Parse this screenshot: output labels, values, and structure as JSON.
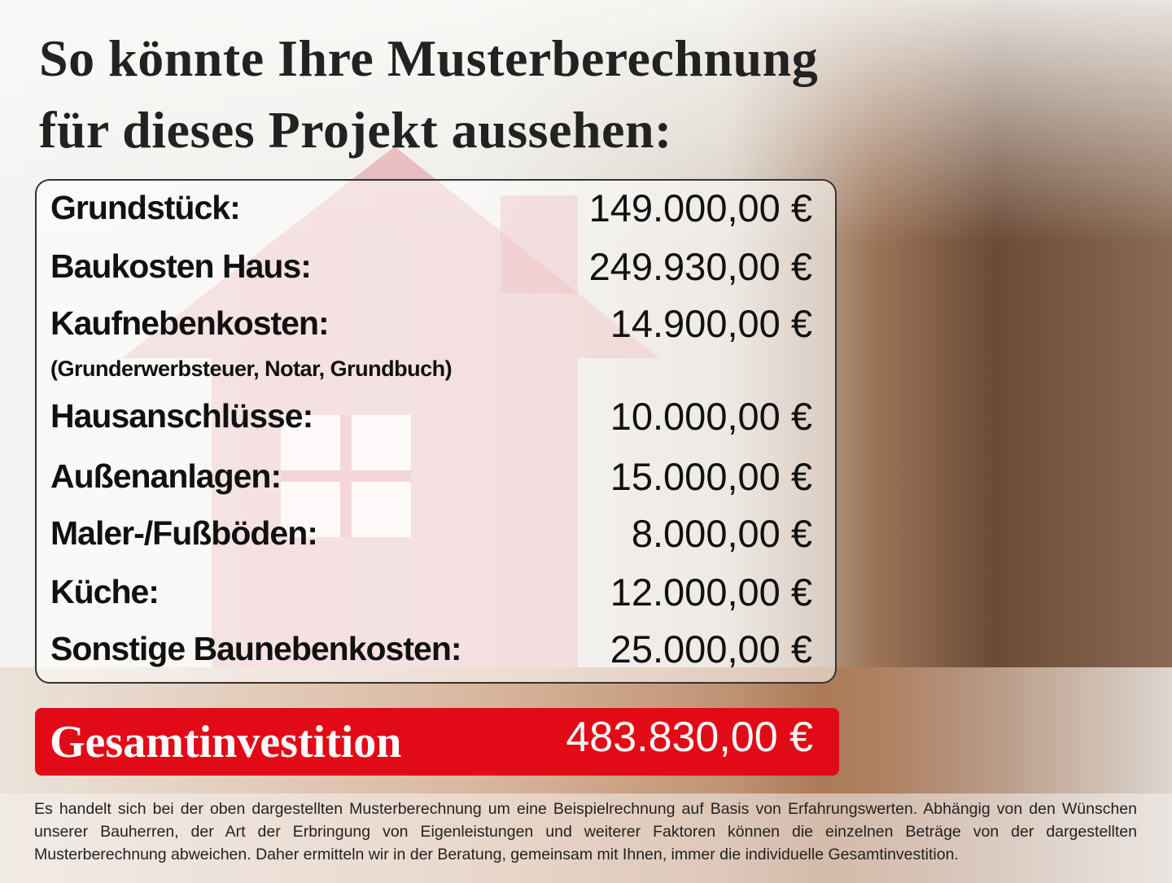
{
  "title": {
    "line1": "So könnte Ihre Musterberechnung",
    "line2": "für dieses Projekt aussehen:"
  },
  "items": [
    {
      "label": "Grundstück:",
      "value": "149.000,00 €"
    },
    {
      "label": "Baukosten Haus:",
      "value": "249.930,00 €"
    },
    {
      "label": "Kaufnebenkosten:",
      "value": "14.900,00 €",
      "note": "(Grunderwerbsteuer, Notar, Grundbuch)"
    },
    {
      "label": "Hausanschlüsse:",
      "value": "10.000,00 €"
    },
    {
      "label": "Außenanlagen:",
      "value": "15.000,00 €"
    },
    {
      "label": "Maler-/Fußböden:",
      "value": "8.000,00 €"
    },
    {
      "label": "Küche:",
      "value": "12.000,00 €"
    },
    {
      "label": "Sonstige Baunebenkosten:",
      "value": "25.000,00 €"
    }
  ],
  "total": {
    "label": "Gesamtinvestition",
    "value": "483.830,00 €"
  },
  "disclaimer": "Es handelt sich bei der oben dargestellten Musterberechnung um eine Beispielrechnung auf Basis von Erfahrungswerten. Abhängig von den Wünschen unserer Bauherren, der Art der Erbringung von Eigenleistungen und weiterer Faktoren können die einzelnen Beträge von der dargestellten Musterberechnung abweichen. Daher ermitteln wir in der Beratung, gemeinsam mit Ihnen, immer die individuelle Gesamtinvestition.",
  "colors": {
    "accent": "#e20a16",
    "house": "#c9303c"
  }
}
